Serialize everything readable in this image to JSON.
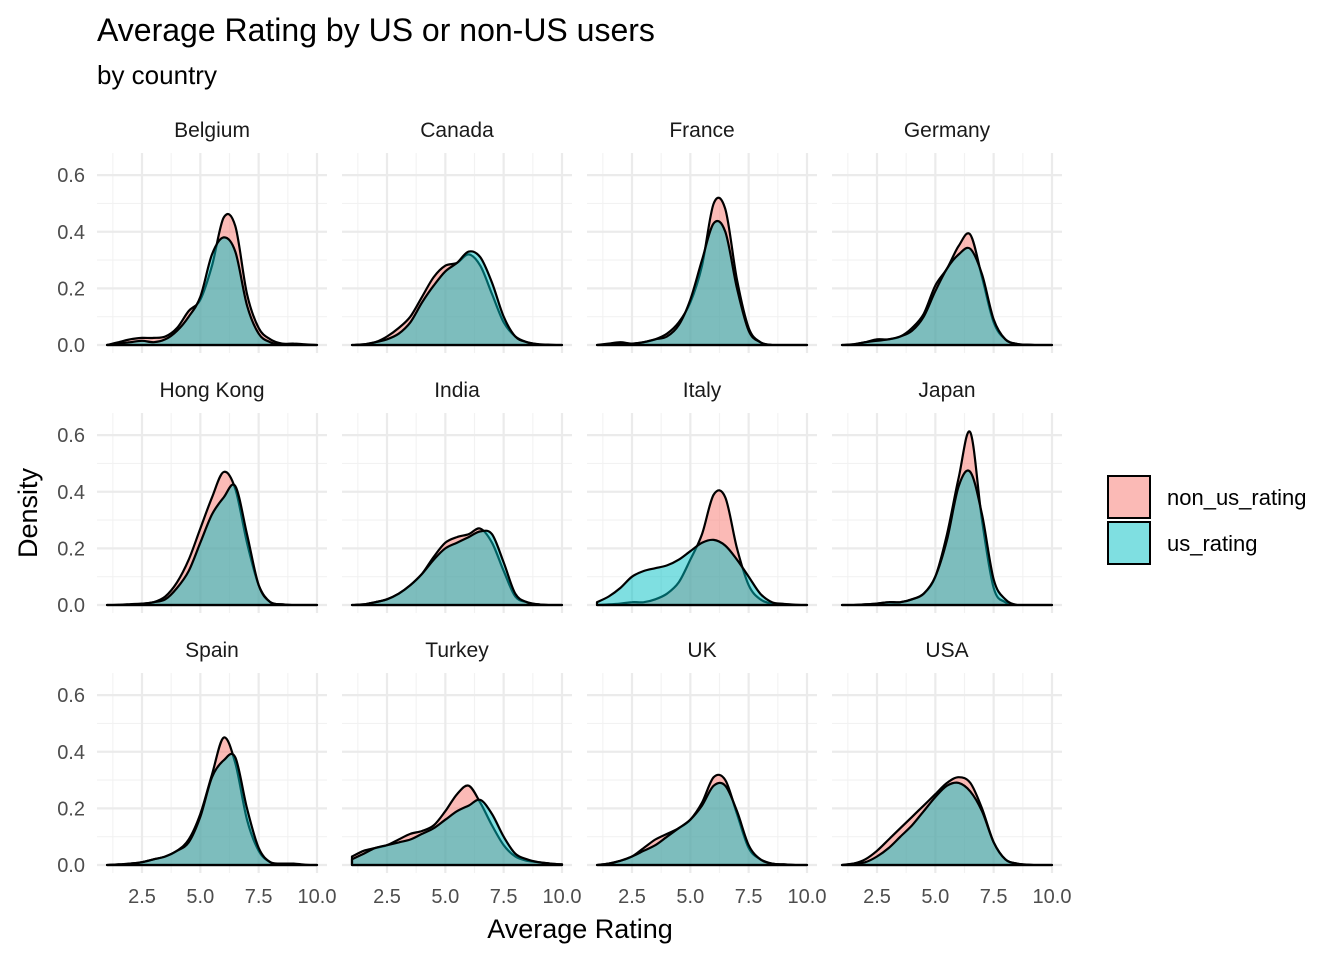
{
  "chart_data": {
    "type": "area",
    "subtype": "faceted-density",
    "title": "Average Rating by US or non-US users",
    "subtitle": "by country",
    "xlabel": "Average Rating",
    "ylabel": "Density",
    "xlim": [
      1,
      10
    ],
    "ylim": [
      0,
      0.65
    ],
    "x_ticks": [
      2.5,
      5.0,
      7.5,
      10.0
    ],
    "x_tick_labels": [
      "2.5",
      "5.0",
      "7.5",
      "10.0"
    ],
    "y_ticks": [
      0.0,
      0.2,
      0.4,
      0.6
    ],
    "y_tick_labels": [
      "0.0",
      "0.2",
      "0.4",
      "0.6"
    ],
    "grid": true,
    "facet_layout": {
      "rows": 3,
      "cols": 4
    },
    "legend": {
      "position": "right",
      "entries": [
        {
          "key": "non_us_rating",
          "label": "non_us_rating",
          "color": "#F8766D"
        },
        {
          "key": "us_rating",
          "label": "us_rating",
          "color": "#00BFC4"
        }
      ]
    },
    "x": [
      1.0,
      1.5,
      2.0,
      2.5,
      3.0,
      3.5,
      4.0,
      4.5,
      5.0,
      5.5,
      6.0,
      6.5,
      7.0,
      7.5,
      8.0,
      8.5,
      9.0,
      9.5,
      10.0
    ],
    "facets": [
      {
        "name": "Belgium",
        "non_us_rating": [
          0.0,
          0.01,
          0.02,
          0.025,
          0.025,
          0.03,
          0.06,
          0.12,
          0.16,
          0.28,
          0.45,
          0.42,
          0.18,
          0.06,
          0.02,
          0.005,
          0.005,
          0.002,
          0.0
        ],
        "us_rating": [
          0.0,
          0.005,
          0.01,
          0.015,
          0.01,
          0.02,
          0.05,
          0.1,
          0.17,
          0.32,
          0.38,
          0.33,
          0.14,
          0.04,
          0.01,
          0.0,
          0.0,
          0.0,
          0.0
        ]
      },
      {
        "name": "Canada",
        "non_us_rating": [
          0.0,
          0.002,
          0.01,
          0.03,
          0.06,
          0.1,
          0.17,
          0.24,
          0.28,
          0.29,
          0.32,
          0.28,
          0.18,
          0.08,
          0.03,
          0.01,
          0.003,
          0.001,
          0.0
        ],
        "us_rating": [
          0.0,
          0.002,
          0.01,
          0.02,
          0.04,
          0.08,
          0.15,
          0.21,
          0.26,
          0.29,
          0.33,
          0.31,
          0.22,
          0.1,
          0.03,
          0.01,
          0.002,
          0.0,
          0.0
        ],
        "non_us_rating_note": "",
        "us_rating_note": ""
      },
      {
        "name": "France",
        "non_us_rating": [
          0.0,
          0.005,
          0.01,
          0.005,
          0.01,
          0.02,
          0.04,
          0.08,
          0.15,
          0.28,
          0.5,
          0.48,
          0.23,
          0.06,
          0.01,
          0.0,
          0.0,
          0.0,
          0.0
        ],
        "us_rating": [
          0.0,
          0.002,
          0.005,
          0.005,
          0.01,
          0.02,
          0.03,
          0.07,
          0.16,
          0.3,
          0.43,
          0.4,
          0.2,
          0.05,
          0.01,
          0.0,
          0.0,
          0.0,
          0.0
        ]
      },
      {
        "name": "Germany",
        "non_us_rating": [
          0.0,
          0.003,
          0.01,
          0.02,
          0.02,
          0.03,
          0.06,
          0.11,
          0.21,
          0.27,
          0.35,
          0.39,
          0.24,
          0.08,
          0.02,
          0.004,
          0.001,
          0.0,
          0.0
        ],
        "us_rating": [
          0.0,
          0.002,
          0.01,
          0.015,
          0.02,
          0.03,
          0.05,
          0.1,
          0.19,
          0.27,
          0.32,
          0.34,
          0.25,
          0.09,
          0.02,
          0.004,
          0.001,
          0.0,
          0.0
        ]
      },
      {
        "name": "Hong Kong",
        "non_us_rating": [
          0.0,
          0.001,
          0.003,
          0.005,
          0.01,
          0.03,
          0.08,
          0.16,
          0.27,
          0.38,
          0.47,
          0.41,
          0.22,
          0.07,
          0.01,
          0.002,
          0.0,
          0.0,
          0.0
        ],
        "us_rating": [
          0.0,
          0.0,
          0.002,
          0.004,
          0.01,
          0.02,
          0.06,
          0.12,
          0.22,
          0.32,
          0.38,
          0.42,
          0.25,
          0.07,
          0.01,
          0.002,
          0.0,
          0.0,
          0.0
        ]
      },
      {
        "name": "India",
        "non_us_rating": [
          0.0,
          0.002,
          0.01,
          0.02,
          0.04,
          0.07,
          0.11,
          0.17,
          0.22,
          0.24,
          0.25,
          0.27,
          0.22,
          0.12,
          0.03,
          0.01,
          0.002,
          0.0,
          0.0
        ],
        "us_rating": [
          0.0,
          0.002,
          0.01,
          0.02,
          0.04,
          0.07,
          0.11,
          0.16,
          0.2,
          0.22,
          0.24,
          0.26,
          0.25,
          0.15,
          0.04,
          0.01,
          0.002,
          0.0,
          0.0
        ]
      },
      {
        "name": "Italy",
        "non_us_rating": [
          0.0,
          0.002,
          0.005,
          0.01,
          0.01,
          0.02,
          0.04,
          0.08,
          0.16,
          0.25,
          0.39,
          0.38,
          0.2,
          0.07,
          0.02,
          0.005,
          0.002,
          0.0,
          0.0
        ],
        "us_rating": [
          0.01,
          0.03,
          0.06,
          0.1,
          0.12,
          0.13,
          0.14,
          0.16,
          0.19,
          0.22,
          0.23,
          0.21,
          0.16,
          0.1,
          0.04,
          0.01,
          0.004,
          0.001,
          0.0
        ]
      },
      {
        "name": "Japan",
        "non_us_rating": [
          0.0,
          0.0,
          0.002,
          0.005,
          0.01,
          0.01,
          0.02,
          0.04,
          0.1,
          0.25,
          0.45,
          0.61,
          0.3,
          0.06,
          0.01,
          0.0,
          0.0,
          0.0,
          0.0
        ],
        "us_rating": [
          0.0,
          0.0,
          0.002,
          0.005,
          0.01,
          0.01,
          0.02,
          0.04,
          0.1,
          0.23,
          0.42,
          0.47,
          0.32,
          0.09,
          0.02,
          0.0,
          0.0,
          0.0,
          0.0
        ]
      },
      {
        "name": "Spain",
        "non_us_rating": [
          0.0,
          0.002,
          0.005,
          0.01,
          0.02,
          0.03,
          0.05,
          0.09,
          0.18,
          0.32,
          0.45,
          0.36,
          0.16,
          0.05,
          0.01,
          0.005,
          0.005,
          0.001,
          0.0
        ],
        "us_rating": [
          0.0,
          0.002,
          0.005,
          0.01,
          0.02,
          0.03,
          0.05,
          0.08,
          0.17,
          0.31,
          0.37,
          0.38,
          0.2,
          0.06,
          0.01,
          0.003,
          0.002,
          0.0,
          0.0
        ]
      },
      {
        "name": "Turkey",
        "non_us_rating": [
          0.03,
          0.05,
          0.06,
          0.07,
          0.09,
          0.11,
          0.12,
          0.14,
          0.19,
          0.25,
          0.28,
          0.22,
          0.14,
          0.07,
          0.03,
          0.015,
          0.01,
          0.005,
          0.002
        ],
        "us_rating": [
          0.02,
          0.04,
          0.06,
          0.07,
          0.08,
          0.09,
          0.11,
          0.13,
          0.16,
          0.19,
          0.21,
          0.23,
          0.18,
          0.1,
          0.04,
          0.02,
          0.01,
          0.005,
          0.002
        ]
      },
      {
        "name": "UK",
        "non_us_rating": [
          0.0,
          0.005,
          0.015,
          0.03,
          0.06,
          0.09,
          0.11,
          0.13,
          0.16,
          0.22,
          0.31,
          0.3,
          0.18,
          0.06,
          0.02,
          0.005,
          0.002,
          0.0,
          0.0
        ],
        "us_rating": [
          0.0,
          0.005,
          0.015,
          0.03,
          0.05,
          0.07,
          0.1,
          0.13,
          0.16,
          0.21,
          0.28,
          0.28,
          0.19,
          0.07,
          0.02,
          0.005,
          0.002,
          0.0,
          0.0
        ]
      },
      {
        "name": "USA",
        "non_us_rating": [
          0.0,
          0.005,
          0.02,
          0.05,
          0.09,
          0.13,
          0.17,
          0.21,
          0.25,
          0.29,
          0.31,
          0.29,
          0.2,
          0.08,
          0.02,
          0.005,
          0.001,
          0.0,
          0.0
        ],
        "us_rating": [
          0.0,
          0.005,
          0.01,
          0.03,
          0.06,
          0.1,
          0.14,
          0.19,
          0.24,
          0.28,
          0.29,
          0.26,
          0.19,
          0.08,
          0.02,
          0.005,
          0.001,
          0.0,
          0.0
        ]
      }
    ]
  }
}
